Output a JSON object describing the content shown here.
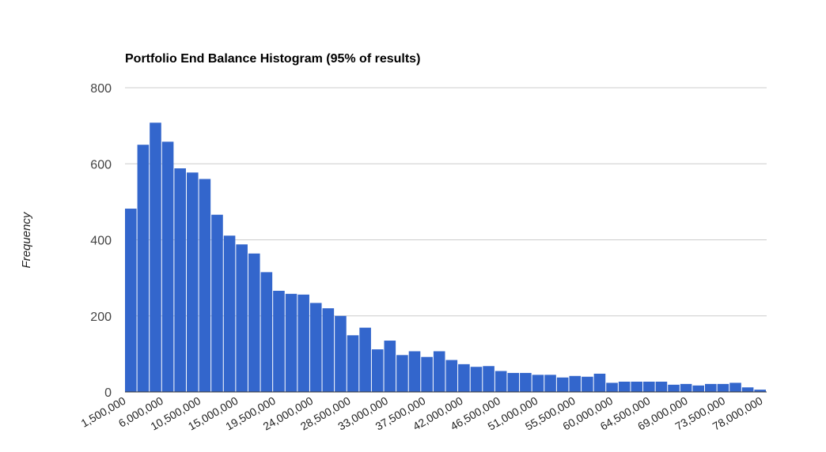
{
  "chart_data": {
    "type": "bar",
    "title": "Portfolio End Balance Histogram (95% of results)",
    "xlabel": "",
    "ylabel": "Frequency",
    "ylim": [
      0,
      800
    ],
    "yticks": [
      0,
      200,
      400,
      600,
      800
    ],
    "grid": true,
    "legend": "none",
    "bar_color": "#3366cc",
    "x_tick_labels": [
      "1,500,000",
      "6,000,000",
      "10,500,000",
      "15,000,000",
      "19,500,000",
      "24,000,000",
      "28,500,000",
      "33,000,000",
      "37,500,000",
      "42,000,000",
      "46,500,000",
      "51,000,000",
      "55,500,000",
      "60,000,000",
      "64,500,000",
      "69,000,000",
      "73,500,000",
      "78,000,000"
    ],
    "values": [
      482,
      650,
      708,
      658,
      588,
      577,
      560,
      466,
      411,
      388,
      364,
      315,
      266,
      258,
      256,
      234,
      220,
      200,
      149,
      169,
      112,
      135,
      97,
      107,
      92,
      107,
      84,
      73,
      66,
      68,
      55,
      50,
      50,
      45,
      45,
      38,
      42,
      40,
      48,
      24,
      27,
      27,
      27,
      27,
      19,
      21,
      17,
      21,
      21,
      24,
      12,
      6
    ]
  }
}
